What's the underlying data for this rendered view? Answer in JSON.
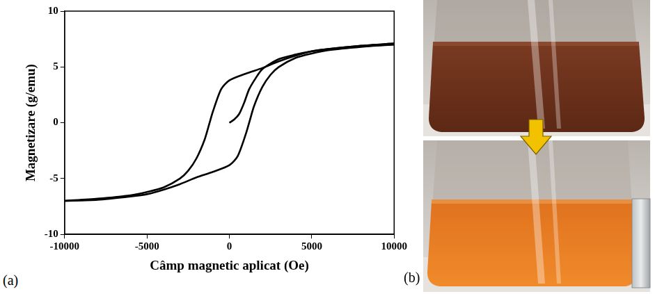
{
  "chart_data": {
    "type": "line",
    "x_label": "Câmp magnetic aplicat (Oe)",
    "y_label": "Magnetizare (g/emu)",
    "xlim": [
      -10000,
      10000
    ],
    "xticks": [
      -10000,
      -5000,
      0,
      5000,
      10000
    ],
    "ylim": [
      -10,
      10
    ],
    "yticks": [
      -10,
      -5,
      0,
      5,
      10
    ],
    "grid": false,
    "series": [
      {
        "color": "#000000",
        "marker": "none",
        "line_style": "solid",
        "x": [
          0,
          300,
          600,
          900,
          1200,
          1600,
          2000,
          3000,
          4000,
          5000,
          6000,
          8000,
          10000
        ],
        "values": [
          0,
          0.3,
          0.8,
          1.8,
          3.0,
          4.0,
          4.8,
          5.7,
          6.1,
          6.4,
          6.6,
          6.9,
          7.1
        ]
      },
      {
        "color": "#000000",
        "marker": "none",
        "line_style": "solid",
        "x": [
          10000,
          8000,
          6000,
          5000,
          4000,
          3000,
          2000,
          1000,
          0,
          -500,
          -1000,
          -1200,
          -1500,
          -2000,
          -2500,
          -3000,
          -4000,
          -5000,
          -6000,
          -8000,
          -10000
        ],
        "values": [
          7.1,
          6.9,
          6.6,
          6.4,
          6.0,
          5.5,
          4.9,
          4.4,
          3.8,
          3.0,
          1.0,
          0,
          -1.5,
          -3.2,
          -4.3,
          -5.0,
          -5.8,
          -6.2,
          -6.5,
          -6.8,
          -7.0
        ]
      },
      {
        "color": "#000000",
        "marker": "none",
        "line_style": "solid",
        "x": [
          -10000,
          -8000,
          -6000,
          -5000,
          -4000,
          -3000,
          -2000,
          -1000,
          0,
          500,
          1000,
          1200,
          1500,
          2000,
          2500,
          3000,
          4000,
          5000,
          6000,
          8000,
          10000
        ],
        "values": [
          -7.0,
          -6.9,
          -6.6,
          -6.4,
          -6.0,
          -5.5,
          -4.9,
          -4.4,
          -3.8,
          -3.0,
          -1.0,
          0,
          1.5,
          3.2,
          4.3,
          5.0,
          5.8,
          6.2,
          6.5,
          6.8,
          7.0
        ]
      }
    ]
  },
  "panel_labels": [
    "(a)",
    "(b)"
  ]
}
